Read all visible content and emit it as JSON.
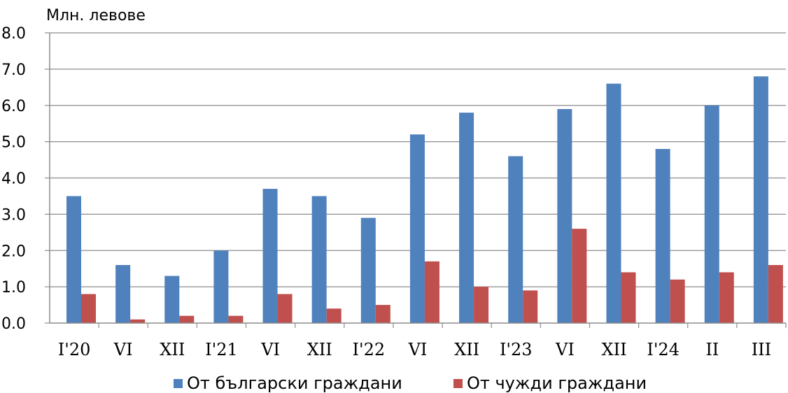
{
  "chart_data": {
    "type": "bar",
    "unit_label": "Млн. левове",
    "categories": [
      "I'20",
      "VI",
      "XII",
      "I'21",
      "VI",
      "XII",
      "I'22",
      "VI",
      "XII",
      "I'23",
      "VI",
      "XII",
      "I'24",
      "II",
      "III"
    ],
    "series": [
      {
        "name": "От български граждани",
        "color": "#4F81BD",
        "values": [
          3.5,
          1.6,
          1.3,
          2.0,
          3.7,
          3.5,
          2.9,
          5.2,
          5.8,
          4.6,
          5.9,
          6.6,
          4.8,
          6.0,
          6.8
        ]
      },
      {
        "name": "От чужди граждани",
        "color": "#C0504D",
        "values": [
          0.8,
          0.1,
          0.2,
          0.2,
          0.8,
          0.4,
          0.5,
          1.7,
          1.0,
          0.9,
          2.6,
          1.4,
          1.2,
          1.4,
          1.6
        ]
      }
    ],
    "yticks": [
      "0.0",
      "1.0",
      "2.0",
      "3.0",
      "4.0",
      "5.0",
      "6.0",
      "7.0",
      "8.0"
    ],
    "ylim": [
      0,
      8
    ],
    "grid": true,
    "legend_position": "bottom"
  }
}
